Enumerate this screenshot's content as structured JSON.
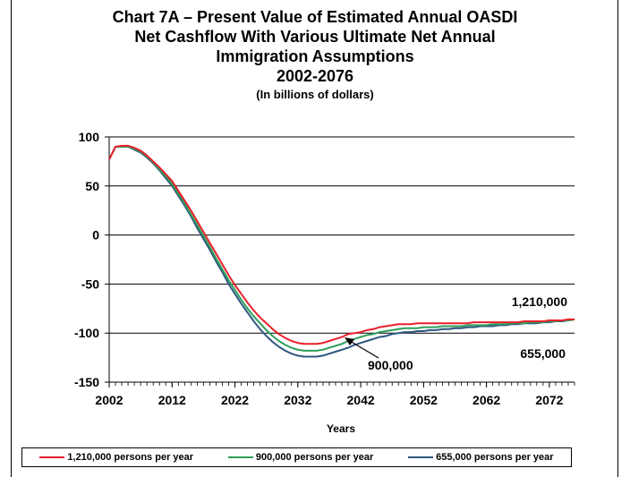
{
  "chart_data": {
    "type": "line",
    "title_lines": [
      "Chart 7A – Present Value of Estimated Annual OASDI",
      "Net Cashflow With Various Ultimate Net Annual",
      "Immigration Assumptions",
      "2002-2076"
    ],
    "subtitle": "(In billions of dollars)",
    "xlabel": "Years",
    "ylabel": "",
    "xlim": [
      2002,
      2076
    ],
    "ylim": [
      -150,
      100
    ],
    "x_ticks": [
      "2002",
      "2012",
      "2022",
      "2032",
      "2042",
      "2052",
      "2062",
      "2072"
    ],
    "y_ticks": [
      "100",
      "50",
      "0",
      "-50",
      "-100",
      "-150"
    ],
    "grid": "horizontal",
    "legend_position": "bottom",
    "annotations": [
      "1,210,000",
      "900,000",
      "655,000"
    ],
    "x": [
      2002,
      2003,
      2004,
      2005,
      2006,
      2007,
      2008,
      2009,
      2010,
      2011,
      2012,
      2013,
      2014,
      2015,
      2016,
      2017,
      2018,
      2019,
      2020,
      2021,
      2022,
      2023,
      2024,
      2025,
      2026,
      2027,
      2028,
      2029,
      2030,
      2031,
      2032,
      2033,
      2034,
      2035,
      2036,
      2037,
      2038,
      2039,
      2040,
      2041,
      2042,
      2043,
      2044,
      2045,
      2046,
      2047,
      2048,
      2049,
      2050,
      2051,
      2052,
      2053,
      2054,
      2055,
      2056,
      2057,
      2058,
      2059,
      2060,
      2061,
      2062,
      2063,
      2064,
      2065,
      2066,
      2067,
      2068,
      2069,
      2070,
      2071,
      2072,
      2073,
      2074,
      2075,
      2076
    ],
    "series": [
      {
        "name": "1,210,000 persons per year",
        "color": "#e8202a",
        "values": [
          77,
          90,
          91,
          91,
          89,
          86,
          81,
          75,
          69,
          62,
          55,
          45,
          35,
          25,
          14,
          3,
          -8,
          -19,
          -30,
          -41,
          -51,
          -60,
          -69,
          -77,
          -84,
          -90,
          -96,
          -101,
          -105,
          -108,
          -110,
          -111,
          -111,
          -111,
          -110,
          -108,
          -106,
          -104,
          -101,
          -100,
          -99,
          -97,
          -96,
          -94,
          -93,
          -92,
          -91,
          -91,
          -91,
          -90,
          -90,
          -90,
          -90,
          -90,
          -90,
          -90,
          -90,
          -90,
          -89,
          -89,
          -89,
          -89,
          -89,
          -89,
          -89,
          -89,
          -88,
          -88,
          -88,
          -88,
          -87,
          -87,
          -87,
          -86,
          -86
        ]
      },
      {
        "name": "900,000 persons per year",
        "color": "#2e9e5a",
        "values": [
          77,
          90,
          90,
          90,
          88,
          85,
          80,
          74,
          67,
          60,
          52,
          42,
          32,
          21,
          10,
          -1,
          -12,
          -24,
          -35,
          -46,
          -56,
          -66,
          -75,
          -83,
          -90,
          -97,
          -103,
          -108,
          -112,
          -115,
          -117,
          -118,
          -118,
          -118,
          -117,
          -115,
          -113,
          -111,
          -108,
          -106,
          -104,
          -102,
          -101,
          -99,
          -98,
          -97,
          -96,
          -95,
          -95,
          -95,
          -94,
          -94,
          -94,
          -93,
          -93,
          -93,
          -93,
          -92,
          -92,
          -92,
          -92,
          -91,
          -91,
          -91,
          -90,
          -90,
          -90,
          -89,
          -89,
          -89,
          -88,
          -88,
          -87,
          -87,
          -86
        ]
      },
      {
        "name": "655,000 persons per year",
        "color": "#2d5680",
        "values": [
          77,
          90,
          90,
          90,
          87,
          84,
          79,
          73,
          66,
          58,
          50,
          40,
          30,
          19,
          7,
          -4,
          -15,
          -27,
          -38,
          -50,
          -60,
          -70,
          -79,
          -88,
          -96,
          -103,
          -109,
          -114,
          -118,
          -121,
          -123,
          -124,
          -124,
          -124,
          -123,
          -121,
          -119,
          -117,
          -115,
          -112,
          -110,
          -108,
          -106,
          -104,
          -103,
          -101,
          -100,
          -99,
          -99,
          -98,
          -98,
          -97,
          -97,
          -96,
          -96,
          -95,
          -95,
          -94,
          -94,
          -93,
          -93,
          -93,
          -92,
          -92,
          -91,
          -91,
          -90,
          -90,
          -90,
          -89,
          -89,
          -88,
          -88,
          -87,
          -86
        ]
      }
    ]
  }
}
